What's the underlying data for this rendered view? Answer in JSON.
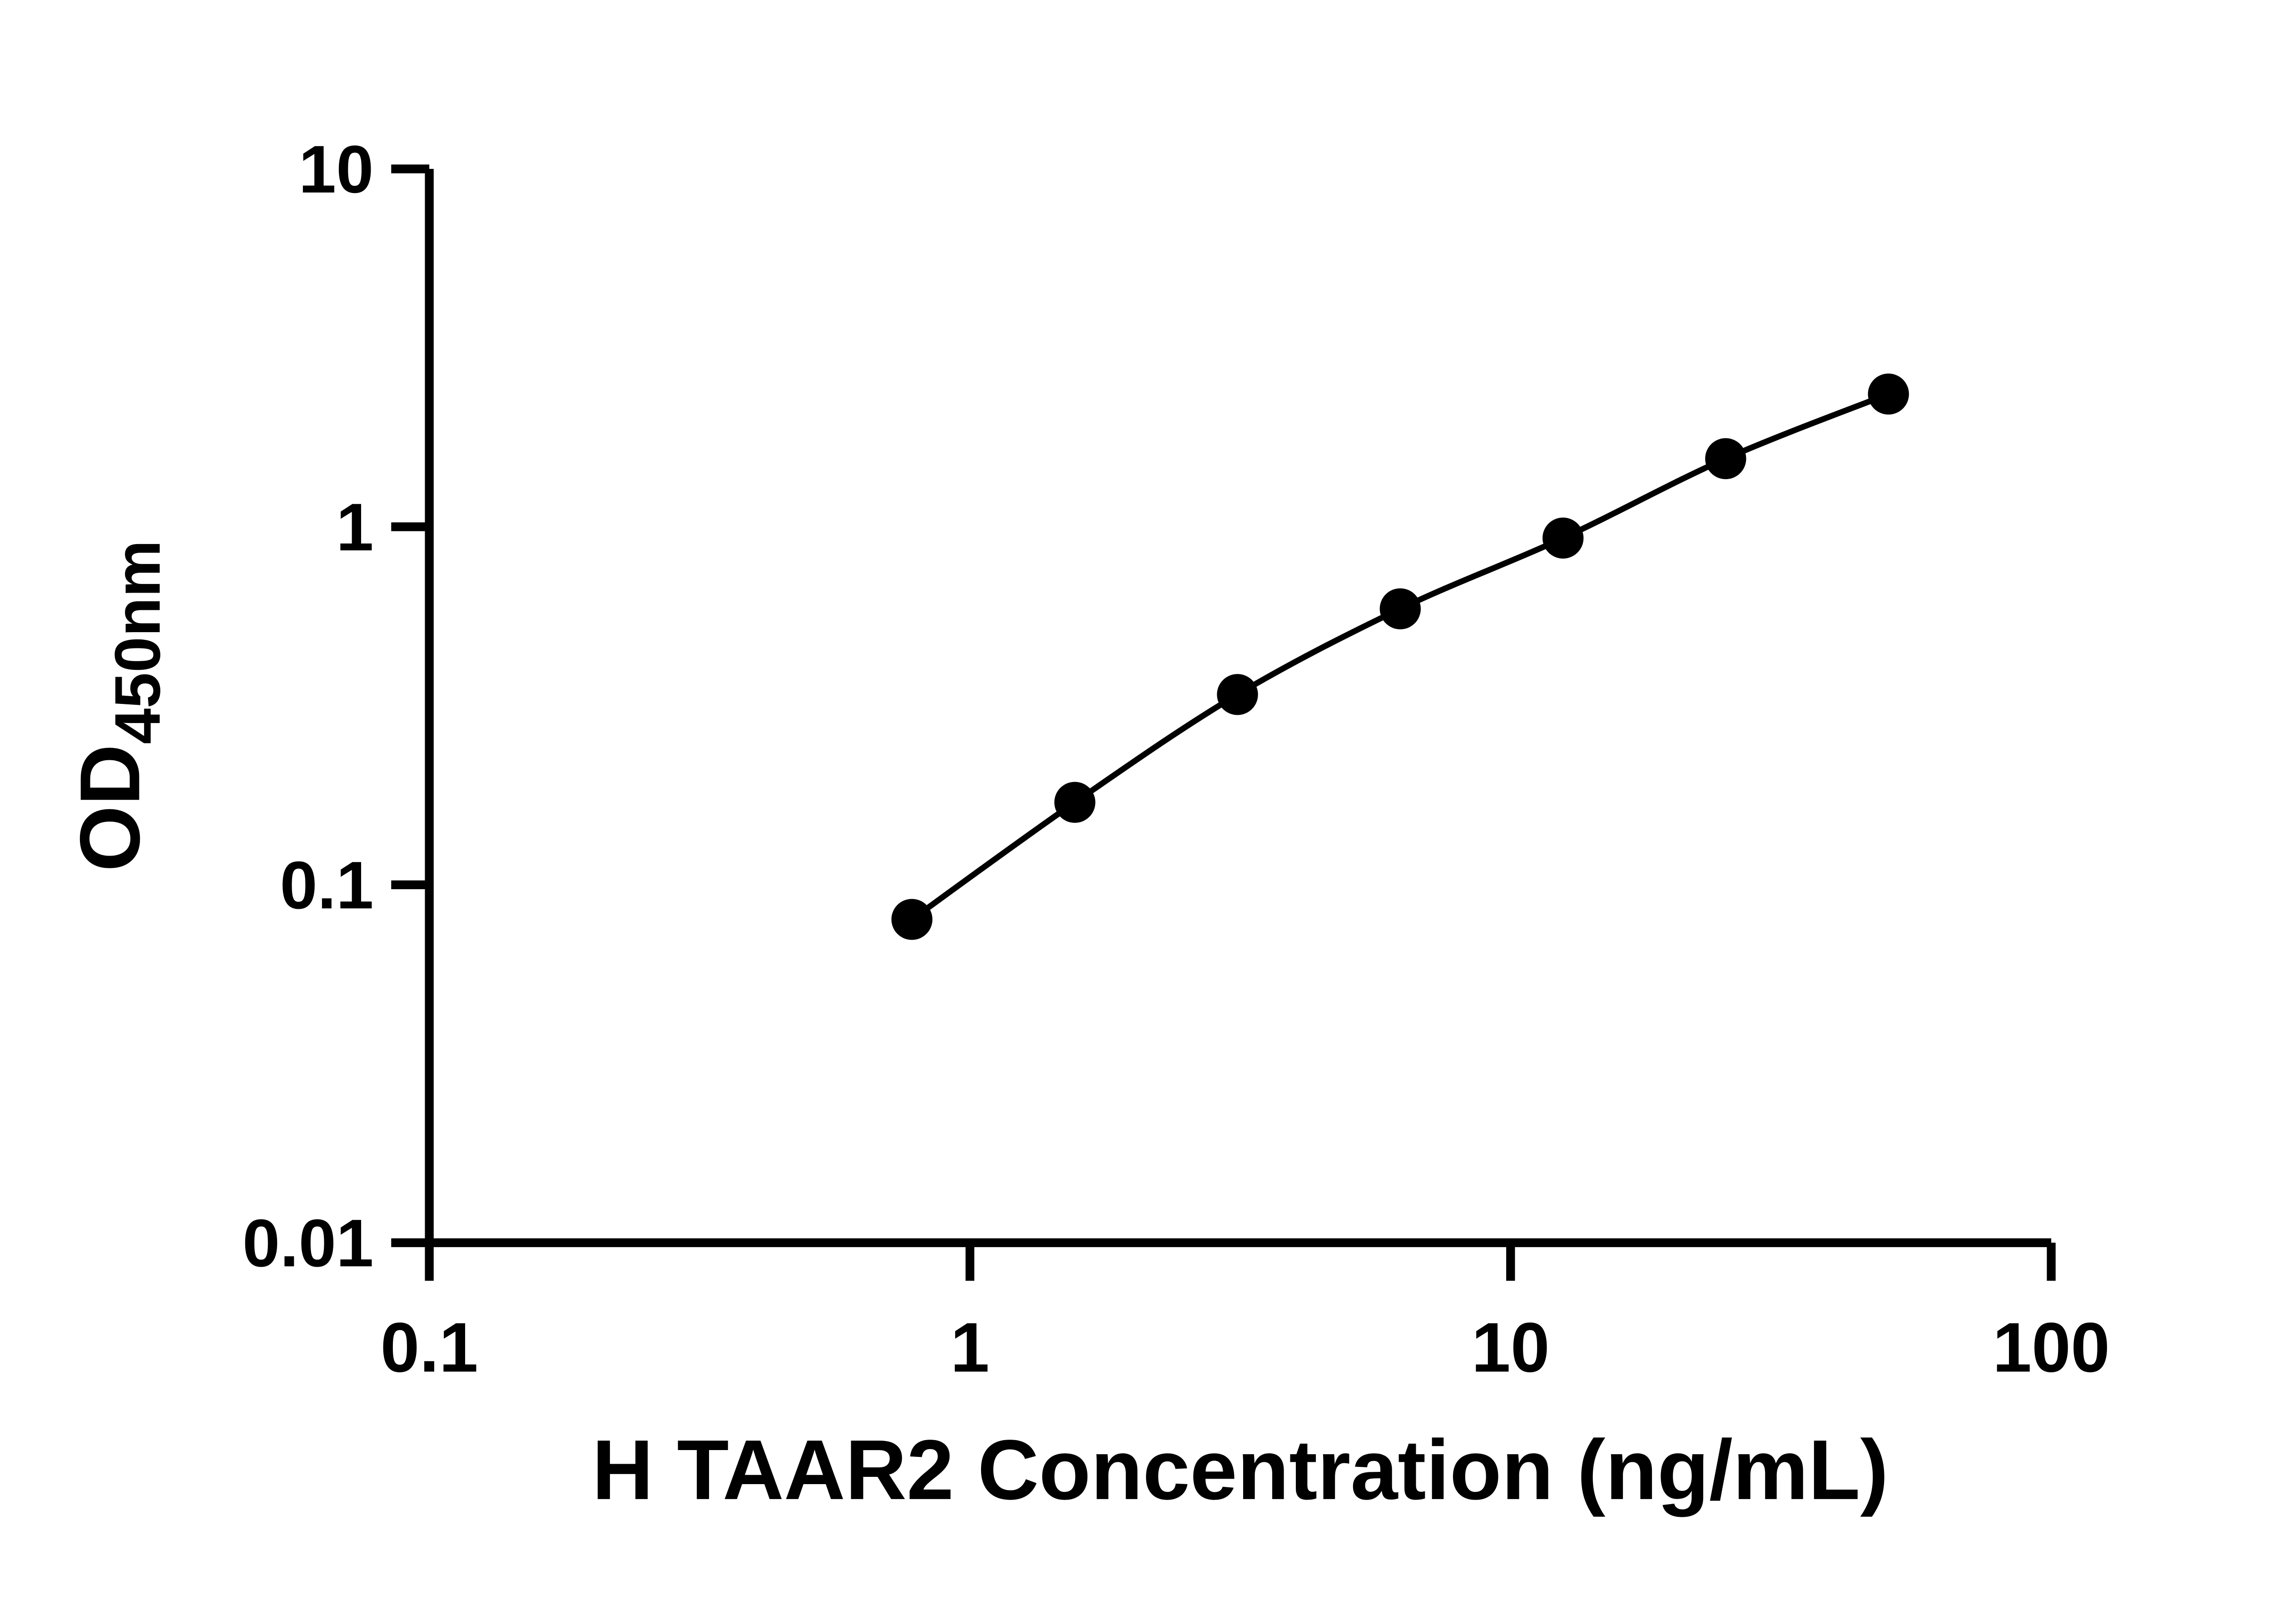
{
  "page": {
    "background": "#ffffff"
  },
  "chart_data": {
    "type": "scatter",
    "title": "",
    "xlabel": "H TAAR2 Concentration (ng/mL)",
    "ylabel": "OD450nm",
    "ylabel_main": "OD",
    "ylabel_sub": "450nm",
    "x_scale": "log",
    "y_scale": "log",
    "xlim": [
      0.1,
      100
    ],
    "ylim": [
      0.01,
      10
    ],
    "x_ticks": [
      0.1,
      1,
      10,
      100
    ],
    "x_tick_labels": [
      "0.1",
      "1",
      "10",
      "100"
    ],
    "y_ticks": [
      0.01,
      0.1,
      1,
      10
    ],
    "y_tick_labels": [
      "0.01",
      "0.1",
      "1",
      "10"
    ],
    "grid": false,
    "legend": "none",
    "axis_color": "#000000",
    "text_color": "#000000",
    "series": [
      {
        "x": [
          0.781,
          1.563,
          3.125,
          6.25,
          12.5,
          25,
          50
        ],
        "y": [
          0.08,
          0.17,
          0.34,
          0.59,
          0.93,
          1.55,
          2.35
        ],
        "marker": "filled-circle",
        "marker_color": "#000000",
        "line_color": "#000000",
        "line_style": "smooth-curve"
      }
    ]
  }
}
